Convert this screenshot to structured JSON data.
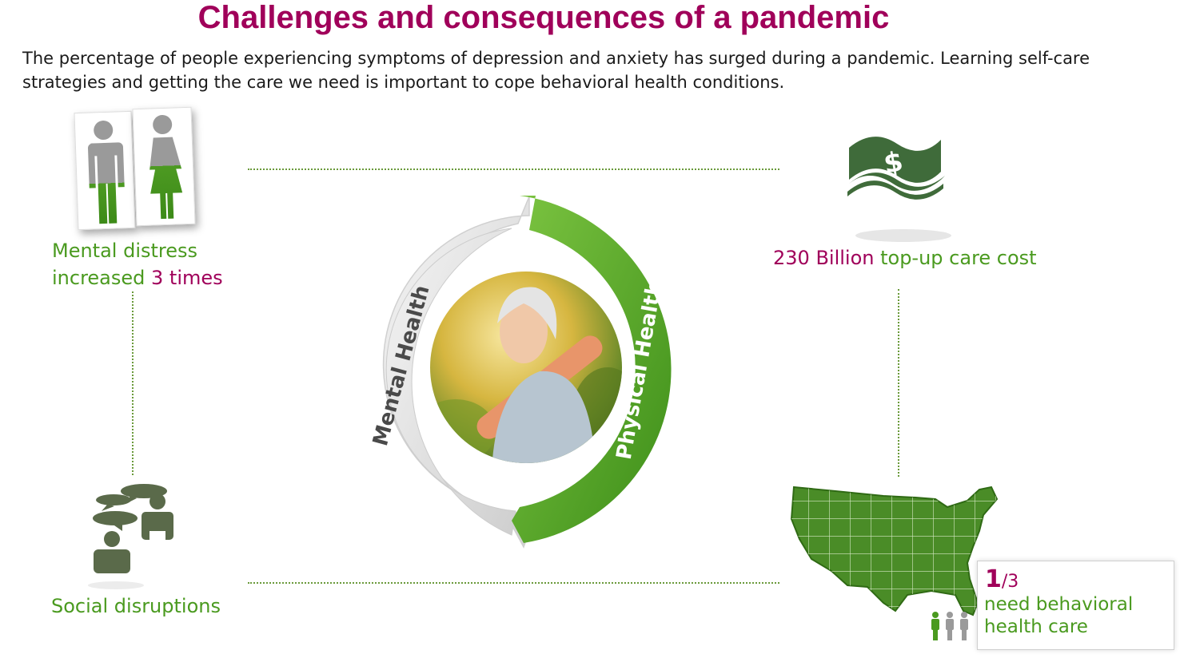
{
  "header": {
    "title": "Challenges and consequences of a pandemic",
    "subtitle": "The percentage of people experiencing symptoms of depression and anxiety has surged during a pandemic. Learning self-care strategies and getting the care we need is important to cope behavioral health conditions."
  },
  "colors": {
    "title": "#a0005a",
    "green": "#4a9a1f",
    "dark_green": "#3f7a2a",
    "icon_gray": "#5a6a4a"
  },
  "quadrants": {
    "top_left": {
      "icon": "man-woman-gauge-icon",
      "line1": "Mental distress",
      "line2_prefix": "increased ",
      "line2_highlight": "3 times"
    },
    "top_right": {
      "icon": "money-icon",
      "highlight": "230 Billion",
      "rest": " top-up care cost"
    },
    "bottom_left": {
      "icon": "social-chat-icon",
      "label": "Social disruptions"
    },
    "bottom_right": {
      "icon": "usa-map-icon",
      "fraction_num": "1",
      "fraction_den": "/3",
      "line1": "need behavioral",
      "line2": "health care"
    }
  },
  "cycle": {
    "left_label": "Mental Health",
    "right_label": "Physical Health",
    "center_image": "woman-with-yoga-mat-photo"
  }
}
